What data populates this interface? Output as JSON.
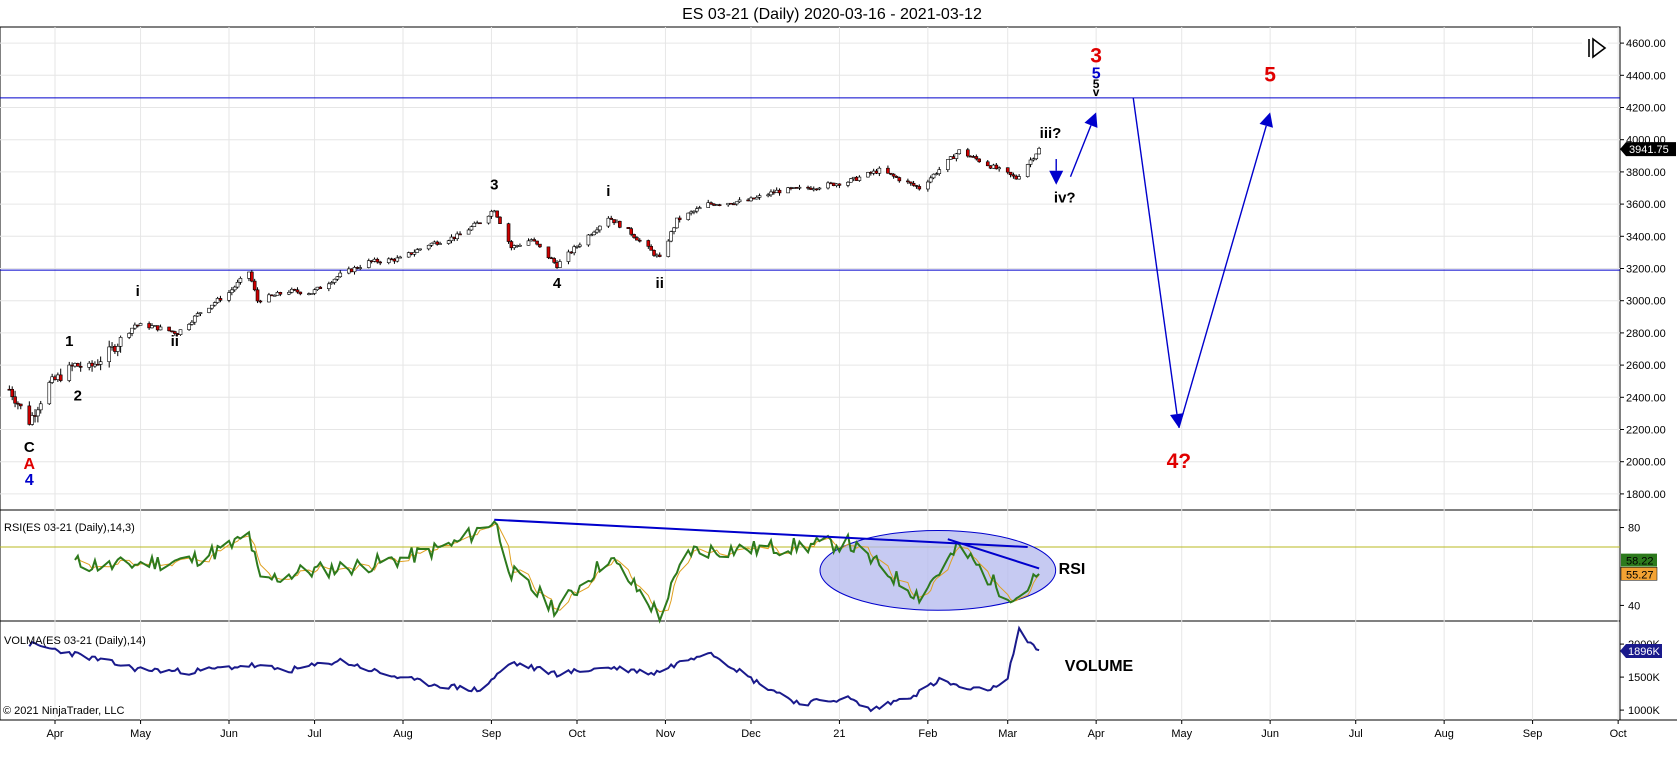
{
  "chart_data": {
    "title": "ES 03-21 (Daily)  2020-03-16 - 2021-03-12",
    "copyright": "© 2021 NinjaTrader, LLC",
    "x_axis_labels": [
      "Apr",
      "May",
      "Jun",
      "Jul",
      "Aug",
      "Sep",
      "Oct",
      "Nov",
      "Dec",
      "21",
      "Feb",
      "Mar",
      "Apr",
      "May",
      "Jun",
      "Jul",
      "Aug",
      "Sep",
      "Oct"
    ],
    "colors": {
      "blue": "#0000cc",
      "red": "#e00000",
      "candle_up": "#ffffff",
      "candle_down": "#cc0000",
      "rsi": "#2d7a1d",
      "rsi_avg": "#e0a020",
      "volma": "#1a1a8c"
    },
    "price_panel": {
      "type": "candlestick",
      "ylim": [
        1700,
        4700
      ],
      "y_ticks": [
        1800,
        2000,
        2200,
        2400,
        2600,
        2800,
        3000,
        3200,
        3400,
        3600,
        3800,
        4000,
        4200,
        4400,
        4600
      ],
      "y_tick_labels": [
        "1800.00",
        "2000.00",
        "2200.00",
        "2400.00",
        "2600.00",
        "2800.00",
        "3000.00",
        "3200.00",
        "3400.00",
        "3600.00",
        "3800.00",
        "4000.00",
        "4200.00",
        "4400.00",
        "4600.00"
      ],
      "last_price": 3941.75,
      "last_price_label": "3941.75",
      "horizontal_lines": [
        4260,
        3190
      ],
      "closes": [
        {
          "d": "2020-03-16",
          "v": 2450
        },
        {
          "d": "2020-03-23",
          "v": 2250
        },
        {
          "d": "2020-03-30",
          "v": 2480
        },
        {
          "d": "2020-04-08",
          "v": 2600
        },
        {
          "d": "2020-04-13",
          "v": 2580
        },
        {
          "d": "2020-04-20",
          "v": 2680
        },
        {
          "d": "2020-04-29",
          "v": 2850
        },
        {
          "d": "2020-05-05",
          "v": 2840
        },
        {
          "d": "2020-05-14",
          "v": 2800
        },
        {
          "d": "2020-05-22",
          "v": 2930
        },
        {
          "d": "2020-06-01",
          "v": 3050
        },
        {
          "d": "2020-06-08",
          "v": 3180
        },
        {
          "d": "2020-06-11",
          "v": 3000
        },
        {
          "d": "2020-06-22",
          "v": 3060
        },
        {
          "d": "2020-06-30",
          "v": 3050
        },
        {
          "d": "2020-07-10",
          "v": 3160
        },
        {
          "d": "2020-07-20",
          "v": 3240
        },
        {
          "d": "2020-07-31",
          "v": 3260
        },
        {
          "d": "2020-08-10",
          "v": 3350
        },
        {
          "d": "2020-08-20",
          "v": 3400
        },
        {
          "d": "2020-08-28",
          "v": 3490
        },
        {
          "d": "2020-09-02",
          "v": 3570
        },
        {
          "d": "2020-09-08",
          "v": 3330
        },
        {
          "d": "2020-09-15",
          "v": 3380
        },
        {
          "d": "2020-09-24",
          "v": 3220
        },
        {
          "d": "2020-10-01",
          "v": 3340
        },
        {
          "d": "2020-10-12",
          "v": 3520
        },
        {
          "d": "2020-10-20",
          "v": 3420
        },
        {
          "d": "2020-10-30",
          "v": 3260
        },
        {
          "d": "2020-11-05",
          "v": 3500
        },
        {
          "d": "2020-11-16",
          "v": 3600
        },
        {
          "d": "2020-11-30",
          "v": 3620
        },
        {
          "d": "2020-12-10",
          "v": 3680
        },
        {
          "d": "2020-12-21",
          "v": 3700
        },
        {
          "d": "2021-01-04",
          "v": 3740
        },
        {
          "d": "2021-01-15",
          "v": 3810
        },
        {
          "d": "2021-01-29",
          "v": 3700
        },
        {
          "d": "2021-02-12",
          "v": 3930
        },
        {
          "d": "2021-02-25",
          "v": 3820
        },
        {
          "d": "2021-03-04",
          "v": 3760
        },
        {
          "d": "2021-03-12",
          "v": 3941.75
        }
      ],
      "wave_labels": [
        {
          "text": "C",
          "d": "2020-03-23",
          "v": 2060,
          "color": "#000000"
        },
        {
          "text": "A",
          "d": "2020-03-23",
          "v": 1955,
          "color": "#e00000"
        },
        {
          "text": "4",
          "d": "2020-03-23",
          "v": 1855,
          "color": "#0000cc"
        },
        {
          "text": "1",
          "d": "2020-04-06",
          "v": 2720,
          "color": "#000000"
        },
        {
          "text": "2",
          "d": "2020-04-09",
          "v": 2380,
          "color": "#000000"
        },
        {
          "text": "i",
          "d": "2020-04-30",
          "v": 3030,
          "color": "#000000"
        },
        {
          "text": "ii",
          "d": "2020-05-13",
          "v": 2720,
          "color": "#000000"
        },
        {
          "text": "3",
          "d": "2020-09-02",
          "v": 3690,
          "color": "#000000"
        },
        {
          "text": "4",
          "d": "2020-09-24",
          "v": 3080,
          "color": "#000000"
        },
        {
          "text": "i",
          "d": "2020-10-12",
          "v": 3650,
          "color": "#000000"
        },
        {
          "text": "ii",
          "d": "2020-10-30",
          "v": 3080,
          "color": "#000000"
        },
        {
          "text": "iii?",
          "d": "2021-03-16",
          "v": 4010,
          "color": "#000000"
        },
        {
          "text": "iv?",
          "d": "2021-03-21",
          "v": 3610,
          "color": "#000000"
        },
        {
          "text": "3",
          "d": "2021-04-01",
          "v": 4480,
          "color": "#e00000"
        },
        {
          "text": "5",
          "d": "2021-04-01",
          "v": 4380,
          "color": "#0000cc"
        },
        {
          "text": "5",
          "d": "2021-04-01",
          "v": 4320,
          "color": "#000000"
        },
        {
          "text": "v",
          "d": "2021-04-01",
          "v": 4270,
          "color": "#000000"
        },
        {
          "text": "5",
          "d": "2021-06-01",
          "v": 4360,
          "color": "#e00000"
        },
        {
          "text": "4?",
          "d": "2021-04-30",
          "v": 1960,
          "color": "#e00000"
        }
      ],
      "arrows": [
        {
          "from": {
            "d": "2021-03-18",
            "v": 3880
          },
          "to": {
            "d": "2021-03-18",
            "v": 3720
          }
        },
        {
          "from": {
            "d": "2021-03-23",
            "v": 3770
          },
          "to": {
            "d": "2021-04-01",
            "v": 4170
          }
        },
        {
          "from": {
            "d": "2021-04-14",
            "v": 4260
          },
          "to": {
            "d": "2021-04-30",
            "v": 2210
          }
        },
        {
          "from": {
            "d": "2021-04-30",
            "v": 2210
          },
          "to": {
            "d": "2021-06-01",
            "v": 4170
          }
        }
      ]
    },
    "rsi_panel": {
      "label": "RSI(ES 03-21 (Daily),14,3)",
      "ylim": [
        32,
        89
      ],
      "y_ticks": [
        40,
        80
      ],
      "y_tick_labels": [
        "40",
        "80"
      ],
      "level_line": 70,
      "last_value_label": "55.27",
      "last_avg_label": "58.22",
      "annotation": "RSI",
      "values": [
        {
          "d": "2020-04-08",
          "v": 62
        },
        {
          "d": "2020-04-20",
          "v": 60
        },
        {
          "d": "2020-05-04",
          "v": 62
        },
        {
          "d": "2020-05-18",
          "v": 63
        },
        {
          "d": "2020-06-01",
          "v": 70
        },
        {
          "d": "2020-06-08",
          "v": 76
        },
        {
          "d": "2020-06-12",
          "v": 52
        },
        {
          "d": "2020-06-25",
          "v": 57
        },
        {
          "d": "2020-07-15",
          "v": 60
        },
        {
          "d": "2020-08-01",
          "v": 64
        },
        {
          "d": "2020-08-20",
          "v": 72
        },
        {
          "d": "2020-09-02",
          "v": 84
        },
        {
          "d": "2020-09-08",
          "v": 57
        },
        {
          "d": "2020-09-24",
          "v": 38
        },
        {
          "d": "2020-10-12",
          "v": 65
        },
        {
          "d": "2020-10-30",
          "v": 35
        },
        {
          "d": "2020-11-09",
          "v": 68
        },
        {
          "d": "2020-12-01",
          "v": 69
        },
        {
          "d": "2021-01-04",
          "v": 72
        },
        {
          "d": "2021-01-29",
          "v": 45
        },
        {
          "d": "2021-02-12",
          "v": 70
        },
        {
          "d": "2021-02-25",
          "v": 50
        },
        {
          "d": "2021-03-04",
          "v": 44
        },
        {
          "d": "2021-03-12",
          "v": 55.27
        }
      ],
      "trendlines": [
        {
          "from": {
            "d": "2020-09-02",
            "v": 84
          },
          "to": {
            "d": "2021-03-08",
            "v": 70
          }
        },
        {
          "from": {
            "d": "2021-02-08",
            "v": 74
          },
          "to": {
            "d": "2021-03-12",
            "v": 59
          }
        }
      ]
    },
    "volma_panel": {
      "label": "VOLMA(ES 03-21 (Daily),14)",
      "ylim": [
        850000,
        2350000
      ],
      "y_ticks": [
        1000000,
        1500000,
        2000000
      ],
      "y_tick_labels": [
        "1000K",
        "1500K",
        "2000K"
      ],
      "last_value_label": "1896K",
      "annotation": "VOLUME",
      "values": [
        {
          "d": "2020-03-23",
          "v": 2000000
        },
        {
          "d": "2020-04-08",
          "v": 1850000
        },
        {
          "d": "2020-04-30",
          "v": 1620000
        },
        {
          "d": "2020-05-18",
          "v": 1580000
        },
        {
          "d": "2020-06-08",
          "v": 1680000
        },
        {
          "d": "2020-06-22",
          "v": 1600000
        },
        {
          "d": "2020-07-10",
          "v": 1750000
        },
        {
          "d": "2020-07-25",
          "v": 1550000
        },
        {
          "d": "2020-08-10",
          "v": 1400000
        },
        {
          "d": "2020-08-28",
          "v": 1300000
        },
        {
          "d": "2020-09-08",
          "v": 1720000
        },
        {
          "d": "2020-09-24",
          "v": 1550000
        },
        {
          "d": "2020-10-12",
          "v": 1650000
        },
        {
          "d": "2020-10-28",
          "v": 1560000
        },
        {
          "d": "2020-11-16",
          "v": 1900000
        },
        {
          "d": "2020-12-02",
          "v": 1450000
        },
        {
          "d": "2020-12-18",
          "v": 1100000
        },
        {
          "d": "2021-01-04",
          "v": 1180000
        },
        {
          "d": "2021-01-12",
          "v": 1000000
        },
        {
          "d": "2021-01-28",
          "v": 1250000
        },
        {
          "d": "2021-02-05",
          "v": 1450000
        },
        {
          "d": "2021-02-16",
          "v": 1300000
        },
        {
          "d": "2021-02-28",
          "v": 1350000
        },
        {
          "d": "2021-03-05",
          "v": 2200000
        },
        {
          "d": "2021-03-12",
          "v": 1896000
        }
      ]
    }
  }
}
